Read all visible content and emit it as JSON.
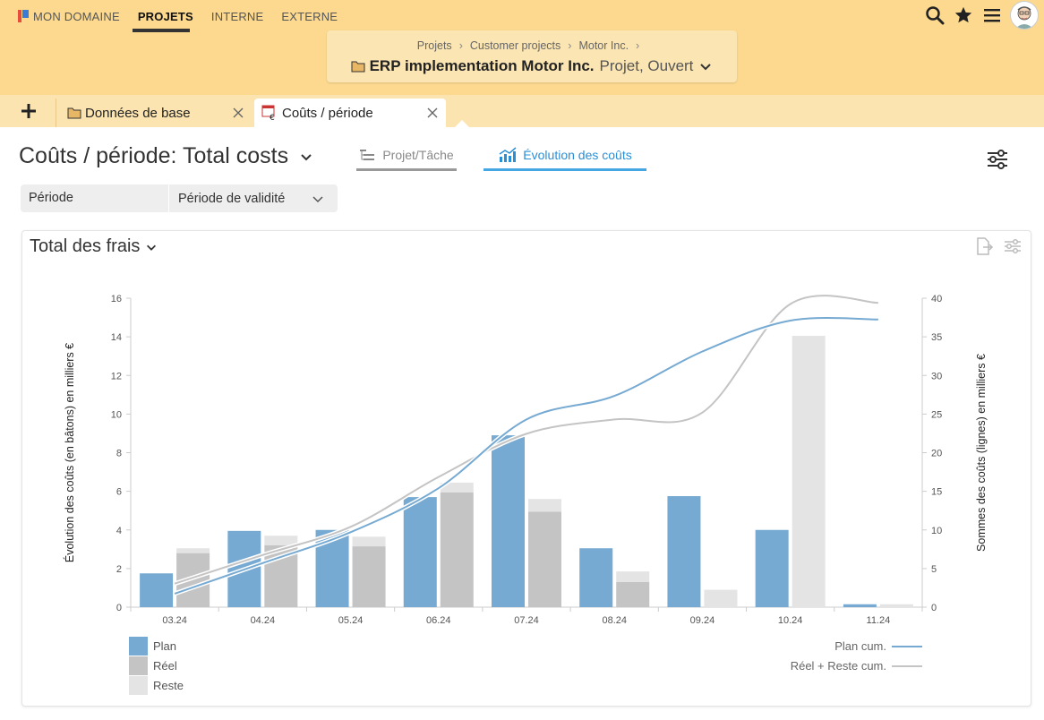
{
  "nav": {
    "items": [
      {
        "label": "MON DOMAINE",
        "active": false
      },
      {
        "label": "PROJETS",
        "active": true
      },
      {
        "label": "INTERNE",
        "active": false
      },
      {
        "label": "EXTERNE",
        "active": false
      }
    ],
    "icons": [
      "search-icon",
      "star-icon",
      "menu-icon",
      "avatar"
    ]
  },
  "breadcrumb": {
    "crumbs": [
      "Projets",
      "Customer projects",
      "Motor Inc."
    ],
    "project_name": "ERP implementation Motor Inc.",
    "project_state": "Projet, Ouvert"
  },
  "tabs": [
    {
      "label": "Données de base",
      "icon": "folder-icon"
    },
    {
      "label": "Coûts / période",
      "icon": "cost-period-icon",
      "active": true
    }
  ],
  "page": {
    "title": "Coûts / période: Total costs",
    "views": [
      {
        "label": "Projet/Tâche",
        "active": false
      },
      {
        "label": "Évolution des coûts",
        "active": true
      }
    ]
  },
  "filter": {
    "label": "Période",
    "value": "Période de validité"
  },
  "panel": {
    "title": "Total des frais"
  },
  "chart_data": {
    "type": "bar",
    "categories": [
      "03.24",
      "04.24",
      "05.24",
      "06.24",
      "07.24",
      "08.24",
      "09.24",
      "10.24",
      "11.24"
    ],
    "ylabel": "Évolution des coûts (en bâtons) en milliers €",
    "ylabel_right": "Sommes des coûts (lignes) en milliers €",
    "ylim": [
      0,
      16
    ],
    "yticks": [
      0,
      2,
      4,
      6,
      8,
      10,
      12,
      14,
      16
    ],
    "ylim_right": [
      0,
      40
    ],
    "yticks_right": [
      0,
      5,
      10,
      15,
      20,
      25,
      30,
      35,
      40
    ],
    "grid": false,
    "colors": {
      "plan": "#76aad2",
      "reel": "#c4c4c4",
      "reste": "#e4e4e4",
      "plan_cum": "#76aad2",
      "reel_cum": "#c4c4c4"
    },
    "series": [
      {
        "name": "Plan",
        "kind": "bar",
        "values": [
          1.75,
          3.95,
          4.0,
          5.7,
          8.9,
          3.05,
          5.75,
          4.0,
          0.15
        ]
      },
      {
        "name": "Réel",
        "kind": "bar-stack-bottom",
        "values": [
          2.8,
          3.2,
          3.15,
          5.95,
          4.95,
          1.3,
          0,
          0,
          0
        ]
      },
      {
        "name": "Reste",
        "kind": "bar-stack-top",
        "values": [
          0.25,
          0.5,
          0.5,
          0.5,
          0.65,
          0.55,
          0.9,
          14.05,
          0.15
        ]
      },
      {
        "name": "Plan cum.",
        "kind": "line",
        "axis": "right",
        "values": [
          1.75,
          5.7,
          9.7,
          15.4,
          24.3,
          27.35,
          33.1,
          37.1,
          37.25
        ]
      },
      {
        "name": "Réel + Reste cum.",
        "kind": "line",
        "axis": "right",
        "values": [
          3.05,
          6.75,
          10.4,
          16.85,
          22.45,
          24.3,
          25.2,
          39.25,
          39.4
        ]
      }
    ],
    "legend": {
      "left": [
        "Plan",
        "Réel",
        "Reste"
      ],
      "right": [
        "Plan cum.",
        "Réel + Reste cum."
      ]
    }
  }
}
